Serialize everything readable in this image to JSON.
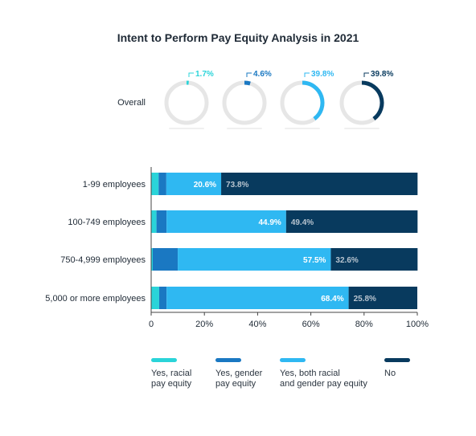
{
  "chart_data": {
    "type": "bar",
    "orientation": "horizontal",
    "stacked": true,
    "title": "Intent to Perform Pay Equity Analysis in 2021",
    "overall": {
      "label": "Overall",
      "values": [
        1.7,
        4.6,
        39.8,
        39.8
      ],
      "labels": [
        "1.7%",
        "4.6%",
        "39.8%",
        "39.8%"
      ]
    },
    "categories": [
      "1-99 employees",
      "100-749 employees",
      "750-4,999 employees",
      "5,000 or more employees"
    ],
    "series": [
      {
        "name": "Yes, racial\npay equity",
        "values": [
          2.8,
          2.0,
          0.6,
          3.0
        ],
        "labels": [
          "",
          "",
          "",
          ""
        ],
        "color": "#2ad4d9"
      },
      {
        "name": "Yes, gender\npay equity",
        "values": [
          2.9,
          3.8,
          9.4,
          2.8
        ],
        "labels": [
          "",
          "",
          "",
          ""
        ],
        "color": "#1a78c2"
      },
      {
        "name": "Yes, both racial\nand gender pay equity",
        "values": [
          20.6,
          44.9,
          57.5,
          68.4
        ],
        "labels": [
          "20.6%",
          "44.9%",
          "57.5%",
          "68.4%"
        ],
        "color": "#2fb8f2"
      },
      {
        "name": "No",
        "values": [
          73.8,
          49.4,
          32.6,
          25.8
        ],
        "labels": [
          "73.8%",
          "49.4%",
          "32.6%",
          "25.8%"
        ],
        "color": "#083a5e"
      }
    ],
    "xlim": [
      0,
      100
    ],
    "xticks": [
      "0",
      "20%",
      "40%",
      "60%",
      "80%",
      "100%"
    ],
    "grid": false,
    "legend_position": "bottom"
  }
}
